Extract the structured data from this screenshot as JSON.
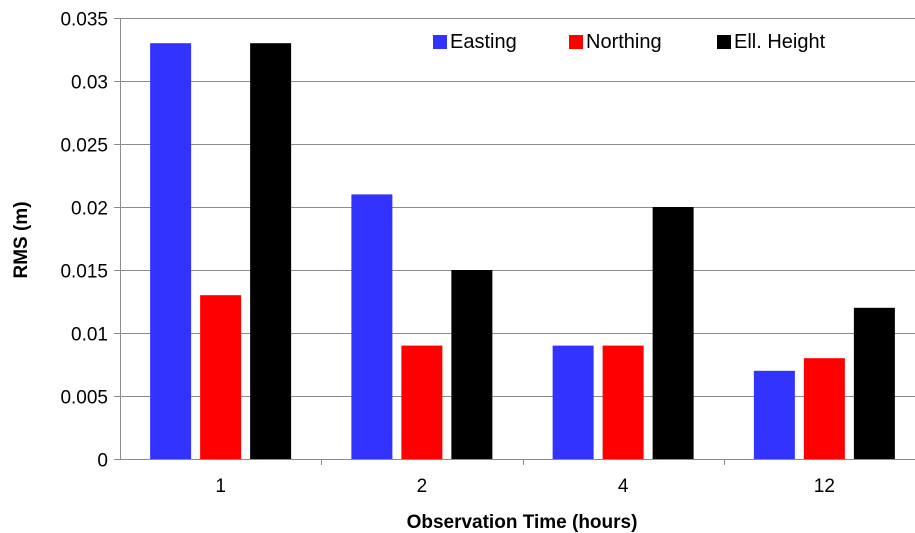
{
  "chart_data": {
    "type": "bar",
    "title": "",
    "xlabel": "Observation Time (hours)",
    "ylabel": "RMS (m)",
    "categories": [
      "1",
      "2",
      "4",
      "12"
    ],
    "series": [
      {
        "name": "Easting",
        "color": "#3333ff",
        "values": [
          0.033,
          0.021,
          0.009,
          0.007
        ]
      },
      {
        "name": "Northing",
        "color": "#ff0000",
        "values": [
          0.013,
          0.009,
          0.009,
          0.008
        ]
      },
      {
        "name": "Ell. Height",
        "color": "#000000",
        "values": [
          0.033,
          0.015,
          0.02,
          0.012
        ]
      }
    ],
    "ylim": [
      0,
      0.035
    ],
    "yticks": [
      "0",
      "0.005",
      "0.01",
      "0.015",
      "0.02",
      "0.025",
      "0.03",
      "0.035"
    ],
    "grid": "horizontal",
    "legend_position": "top-right"
  }
}
